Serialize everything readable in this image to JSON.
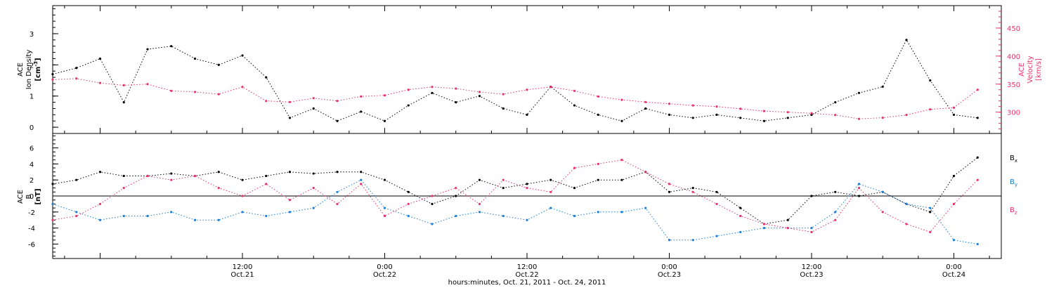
{
  "colors": {
    "axis": "#000000",
    "density": "#000000",
    "velocity": "#e8336b",
    "bx": "#000000",
    "by": "#1a7fd6",
    "bz": "#e8336b"
  },
  "chart_data": [
    {
      "type": "scatter",
      "panel": "top",
      "ylabel_left": [
        "ACE",
        "Ion Density",
        "[cm",
        "-3",
        "]"
      ],
      "ylabel_right": [
        "ACE",
        "Velocity",
        "[km/s]"
      ],
      "ylim_left": [
        -0.2,
        3.9
      ],
      "ylim_right": [
        262,
        490
      ],
      "yticks_left": [
        0,
        1,
        2,
        3
      ],
      "yticks_right": [
        300,
        350,
        400,
        450
      ],
      "xlim_hours": [
        -4,
        76
      ],
      "series": [
        {
          "axis": "left",
          "x": [
            -4,
            -2,
            0,
            2,
            4,
            6,
            8,
            10,
            12,
            14,
            16,
            18,
            20,
            22,
            24,
            26,
            28,
            30,
            32,
            34,
            36,
            38,
            40,
            42,
            44,
            46,
            48,
            50,
            52,
            54,
            56,
            58,
            60,
            62,
            64,
            66,
            68,
            70,
            72,
            74
          ],
          "values": [
            1.7,
            1.9,
            2.2,
            0.8,
            2.5,
            2.6,
            2.2,
            2.0,
            2.3,
            1.6,
            0.3,
            0.6,
            0.2,
            0.5,
            0.2,
            0.7,
            1.1,
            0.8,
            1.0,
            0.6,
            0.4,
            1.3,
            0.7,
            0.4,
            0.2,
            0.6,
            0.4,
            0.3,
            0.4,
            0.3,
            0.2,
            0.3,
            0.4,
            0.8,
            1.1,
            1.3,
            2.8,
            1.5,
            0.4,
            0.3
          ]
        },
        {
          "axis": "right",
          "x": [
            -4,
            -2,
            0,
            2,
            4,
            6,
            8,
            10,
            12,
            14,
            16,
            18,
            20,
            22,
            24,
            26,
            28,
            30,
            32,
            34,
            36,
            38,
            40,
            42,
            44,
            46,
            48,
            50,
            52,
            54,
            56,
            58,
            60,
            62,
            64,
            66,
            68,
            70,
            72,
            74
          ],
          "values": [
            358,
            360,
            352,
            348,
            350,
            338,
            336,
            332,
            345,
            320,
            318,
            325,
            320,
            328,
            330,
            340,
            345,
            342,
            336,
            332,
            340,
            345,
            338,
            328,
            322,
            318,
            315,
            312,
            310,
            306,
            302,
            300,
            298,
            295,
            288,
            290,
            295,
            305,
            308,
            340
          ]
        }
      ]
    },
    {
      "type": "scatter",
      "panel": "bottom",
      "ylabel_left": [
        "ACE",
        "B",
        "[nT]"
      ],
      "ylim": [
        -7.8,
        7.8
      ],
      "yticks": [
        -6,
        -4,
        -2,
        0,
        2,
        4,
        6
      ],
      "xlim_hours": [
        -4,
        76
      ],
      "x_tick_labels": [
        {
          "hours": 12,
          "label": "12:00",
          "date": "Oct.21"
        },
        {
          "hours": 24,
          "label": "0:00",
          "date": "Oct.22"
        },
        {
          "hours": 36,
          "label": "12:00",
          "date": "Oct.22"
        },
        {
          "hours": 48,
          "label": "0:00",
          "date": "Oct.23"
        },
        {
          "hours": 60,
          "label": "12:00",
          "date": "Oct.23"
        },
        {
          "hours": 72,
          "label": "0:00",
          "date": "Oct.24"
        }
      ],
      "xlabel": "hours:minutes, Oct. 21, 2011 - Oct. 24, 2011",
      "series": [
        {
          "name": "B",
          "subscript": "x",
          "x": [
            -4,
            -2,
            0,
            2,
            4,
            6,
            8,
            10,
            12,
            14,
            16,
            18,
            20,
            22,
            24,
            26,
            28,
            30,
            32,
            34,
            36,
            38,
            40,
            42,
            44,
            46,
            48,
            50,
            52,
            54,
            56,
            58,
            60,
            62,
            64,
            66,
            68,
            70,
            72,
            74
          ],
          "values": [
            1.5,
            2.0,
            3.0,
            2.5,
            2.5,
            2.8,
            2.5,
            3.0,
            2.0,
            2.5,
            3.0,
            2.8,
            3.0,
            3.0,
            2.0,
            0.5,
            -1.0,
            0.0,
            2.0,
            1.0,
            1.5,
            2.0,
            1.0,
            2.0,
            2.0,
            3.0,
            0.5,
            1.0,
            0.5,
            -1.5,
            -3.5,
            -3.0,
            0.0,
            0.5,
            0.0,
            0.5,
            -1.0,
            -2.0,
            2.5,
            4.8
          ]
        },
        {
          "name": "B",
          "subscript": "y",
          "x": [
            -4,
            -2,
            0,
            2,
            4,
            6,
            8,
            10,
            12,
            14,
            16,
            18,
            20,
            22,
            24,
            26,
            28,
            30,
            32,
            34,
            36,
            38,
            40,
            42,
            44,
            46,
            48,
            50,
            52,
            54,
            56,
            58,
            60,
            62,
            64,
            66,
            68,
            70,
            72,
            74
          ],
          "values": [
            -1.0,
            -2.0,
            -3.0,
            -2.5,
            -2.5,
            -2.0,
            -3.0,
            -3.0,
            -2.0,
            -2.5,
            -2.0,
            -1.5,
            0.5,
            2.0,
            -1.5,
            -2.5,
            -3.5,
            -2.5,
            -2.0,
            -2.5,
            -3.0,
            -1.5,
            -2.5,
            -2.0,
            -2.0,
            -1.5,
            -5.5,
            -5.5,
            -5.0,
            -4.5,
            -4.0,
            -4.0,
            -4.0,
            -2.0,
            1.5,
            0.5,
            -1.0,
            -1.5,
            -5.5,
            -6.0
          ]
        },
        {
          "name": "B",
          "subscript": "z",
          "x": [
            -4,
            -2,
            0,
            2,
            4,
            6,
            8,
            10,
            12,
            14,
            16,
            18,
            20,
            22,
            24,
            26,
            28,
            30,
            32,
            34,
            36,
            38,
            40,
            42,
            44,
            46,
            48,
            50,
            52,
            54,
            56,
            58,
            60,
            62,
            64,
            66,
            68,
            70,
            72,
            74
          ],
          "values": [
            -3.0,
            -2.5,
            -1.0,
            1.0,
            2.5,
            2.0,
            2.5,
            1.0,
            0.0,
            1.5,
            -0.5,
            1.0,
            -1.0,
            1.5,
            -2.5,
            -1.0,
            0.0,
            1.0,
            -1.0,
            2.0,
            1.0,
            0.5,
            3.5,
            4.0,
            4.5,
            3.0,
            1.5,
            0.5,
            -1.0,
            -2.5,
            -3.5,
            -4.0,
            -4.5,
            -3.0,
            1.0,
            -2.0,
            -3.5,
            -4.5,
            -1.0,
            2.0
          ]
        }
      ]
    }
  ]
}
